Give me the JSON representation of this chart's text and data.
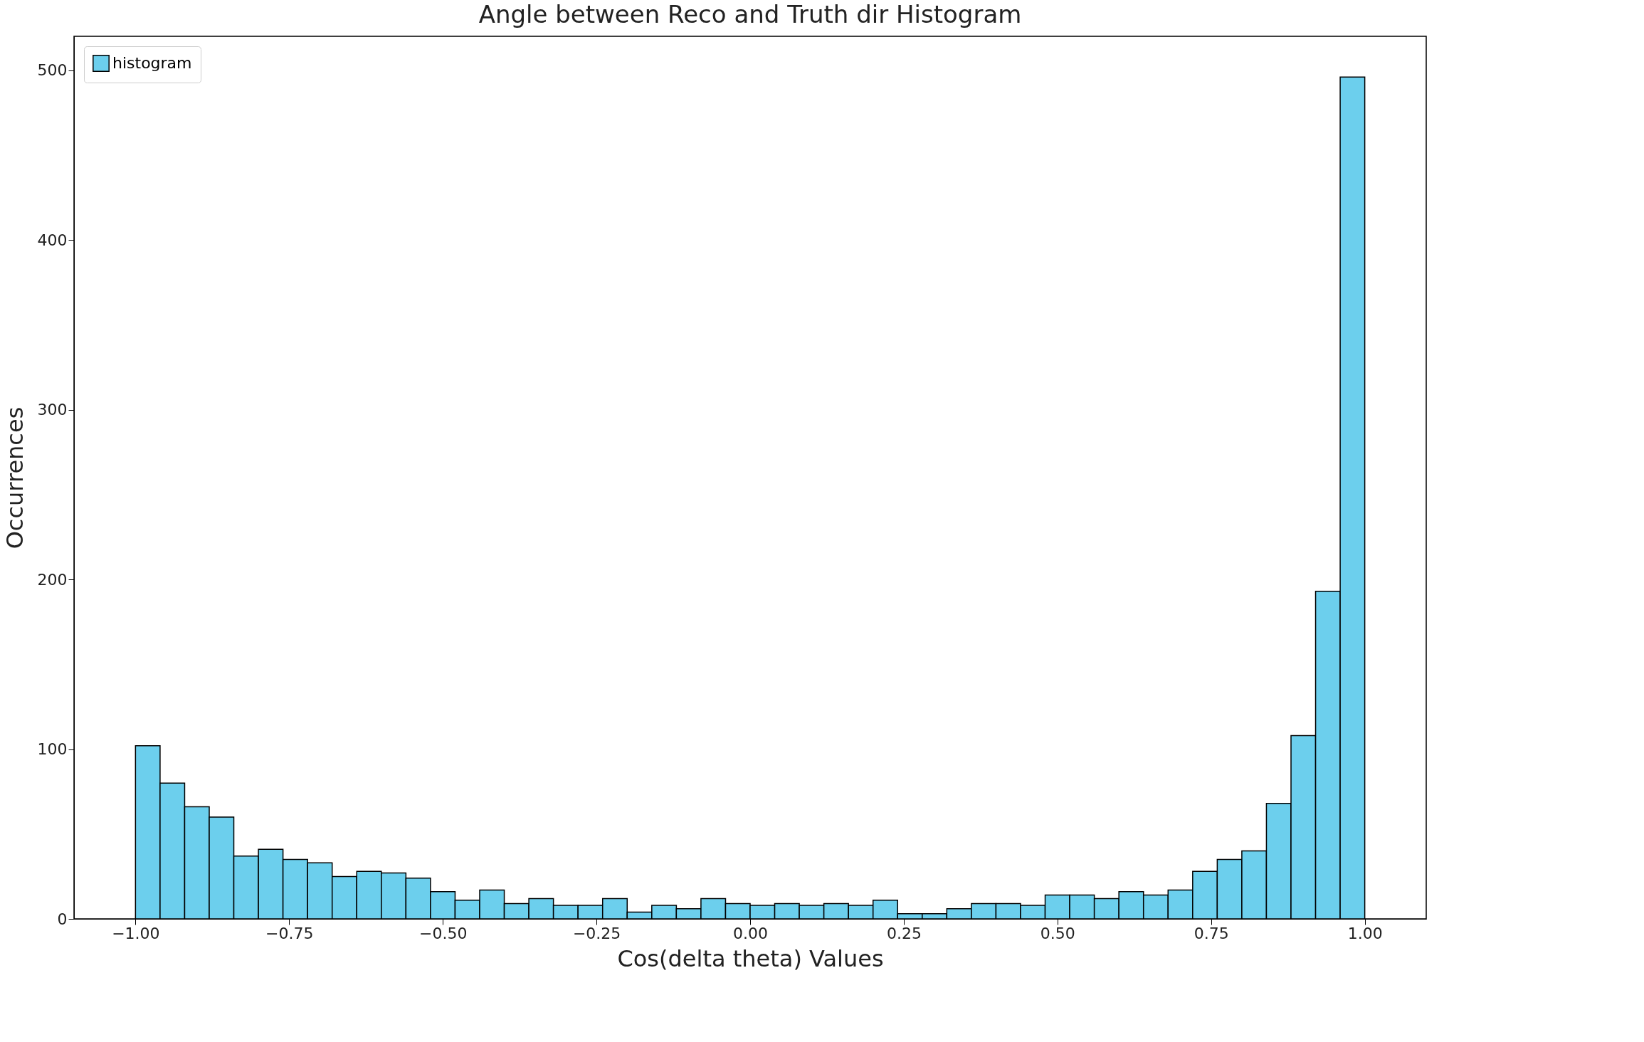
{
  "chart_data": {
    "type": "histogram",
    "title": "Angle between Reco and Truth dir Histogram",
    "xlabel": "Cos(delta theta) Values",
    "ylabel": "Occurrences",
    "bins": [
      -1.0,
      -0.96,
      -0.92,
      -0.88,
      -0.84,
      -0.8,
      -0.76,
      -0.72,
      -0.68,
      -0.64,
      -0.6,
      -0.56,
      -0.52,
      -0.48,
      -0.44,
      -0.4,
      -0.36,
      -0.32,
      -0.28,
      -0.24,
      -0.2,
      -0.16,
      -0.12,
      -0.08,
      -0.04,
      0.0,
      0.04,
      0.08,
      0.12,
      0.16,
      0.2,
      0.24,
      0.28,
      0.32,
      0.36,
      0.4,
      0.44,
      0.48,
      0.52,
      0.56,
      0.6,
      0.64,
      0.68,
      0.72,
      0.76,
      0.8,
      0.84,
      0.88,
      0.92,
      0.96,
      1.0
    ],
    "series": [
      {
        "name": "histogram",
        "color": "#6ccfed",
        "values": [
          102,
          80,
          66,
          60,
          37,
          41,
          35,
          33,
          25,
          28,
          27,
          24,
          16,
          11,
          17,
          9,
          12,
          8,
          8,
          12,
          4,
          8,
          6,
          12,
          9,
          8,
          9,
          8,
          9,
          8,
          11,
          3,
          3,
          6,
          9,
          9,
          8,
          14,
          14,
          12,
          16,
          14,
          17,
          28,
          35,
          40,
          68,
          108,
          193,
          496
        ]
      }
    ],
    "xlim": [
      -1.1,
      1.1
    ],
    "xticks": [
      {
        "value": -1.0,
        "label": "−1.00"
      },
      {
        "value": -0.75,
        "label": "−0.75"
      },
      {
        "value": -0.5,
        "label": "−0.50"
      },
      {
        "value": -0.25,
        "label": "−0.25"
      },
      {
        "value": 0,
        "label": "0.00"
      },
      {
        "value": 0.25,
        "label": "0.25"
      },
      {
        "value": 0.5,
        "label": "0.50"
      },
      {
        "value": 0.75,
        "label": "0.75"
      },
      {
        "value": 1.0,
        "label": "1.00"
      }
    ],
    "ylim": [
      0,
      520
    ],
    "yticks": [
      0,
      100,
      200,
      300,
      400,
      500
    ],
    "legend": "top left",
    "grid": false
  }
}
